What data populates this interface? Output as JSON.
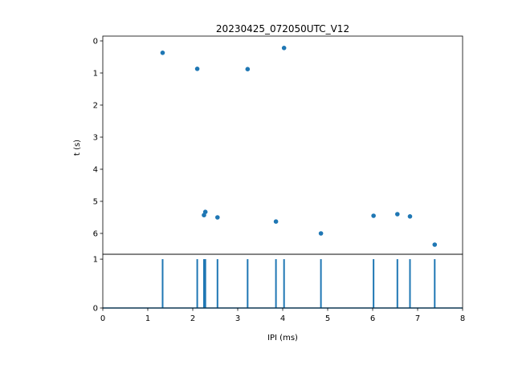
{
  "chart_data": [
    {
      "type": "scatter",
      "title": "20230425_072050UTC_V12",
      "xlabel": "",
      "ylabel": "t (s)",
      "xlim": [
        0,
        8
      ],
      "ylim": [
        6.65,
        -0.15
      ],
      "y_inverted": true,
      "yticks": [
        0,
        1,
        2,
        3,
        4,
        5,
        6
      ],
      "grid": false,
      "color": "#1f77b4",
      "points": [
        {
          "x": 1.33,
          "y": 0.37
        },
        {
          "x": 2.1,
          "y": 0.87
        },
        {
          "x": 3.22,
          "y": 0.88
        },
        {
          "x": 4.03,
          "y": 0.22
        },
        {
          "x": 2.28,
          "y": 5.33
        },
        {
          "x": 2.25,
          "y": 5.43
        },
        {
          "x": 2.55,
          "y": 5.5
        },
        {
          "x": 3.85,
          "y": 5.63
        },
        {
          "x": 4.85,
          "y": 6.0
        },
        {
          "x": 6.02,
          "y": 5.45
        },
        {
          "x": 6.55,
          "y": 5.4
        },
        {
          "x": 6.83,
          "y": 5.47
        },
        {
          "x": 7.38,
          "y": 6.35
        }
      ]
    },
    {
      "type": "line",
      "title": "",
      "xlabel": "IPI (ms)",
      "ylabel": "",
      "xlim": [
        0,
        8
      ],
      "ylim": [
        0,
        1.1
      ],
      "xticks": [
        0,
        1,
        2,
        3,
        4,
        5,
        6,
        7,
        8
      ],
      "yticks": [
        0,
        1
      ],
      "grid": false,
      "color": "#1f77b4",
      "spikes_x": [
        1.33,
        2.1,
        2.25,
        2.28,
        2.55,
        3.22,
        3.85,
        4.03,
        4.85,
        6.02,
        6.55,
        6.83,
        7.38
      ],
      "spike_height": 1
    }
  ]
}
